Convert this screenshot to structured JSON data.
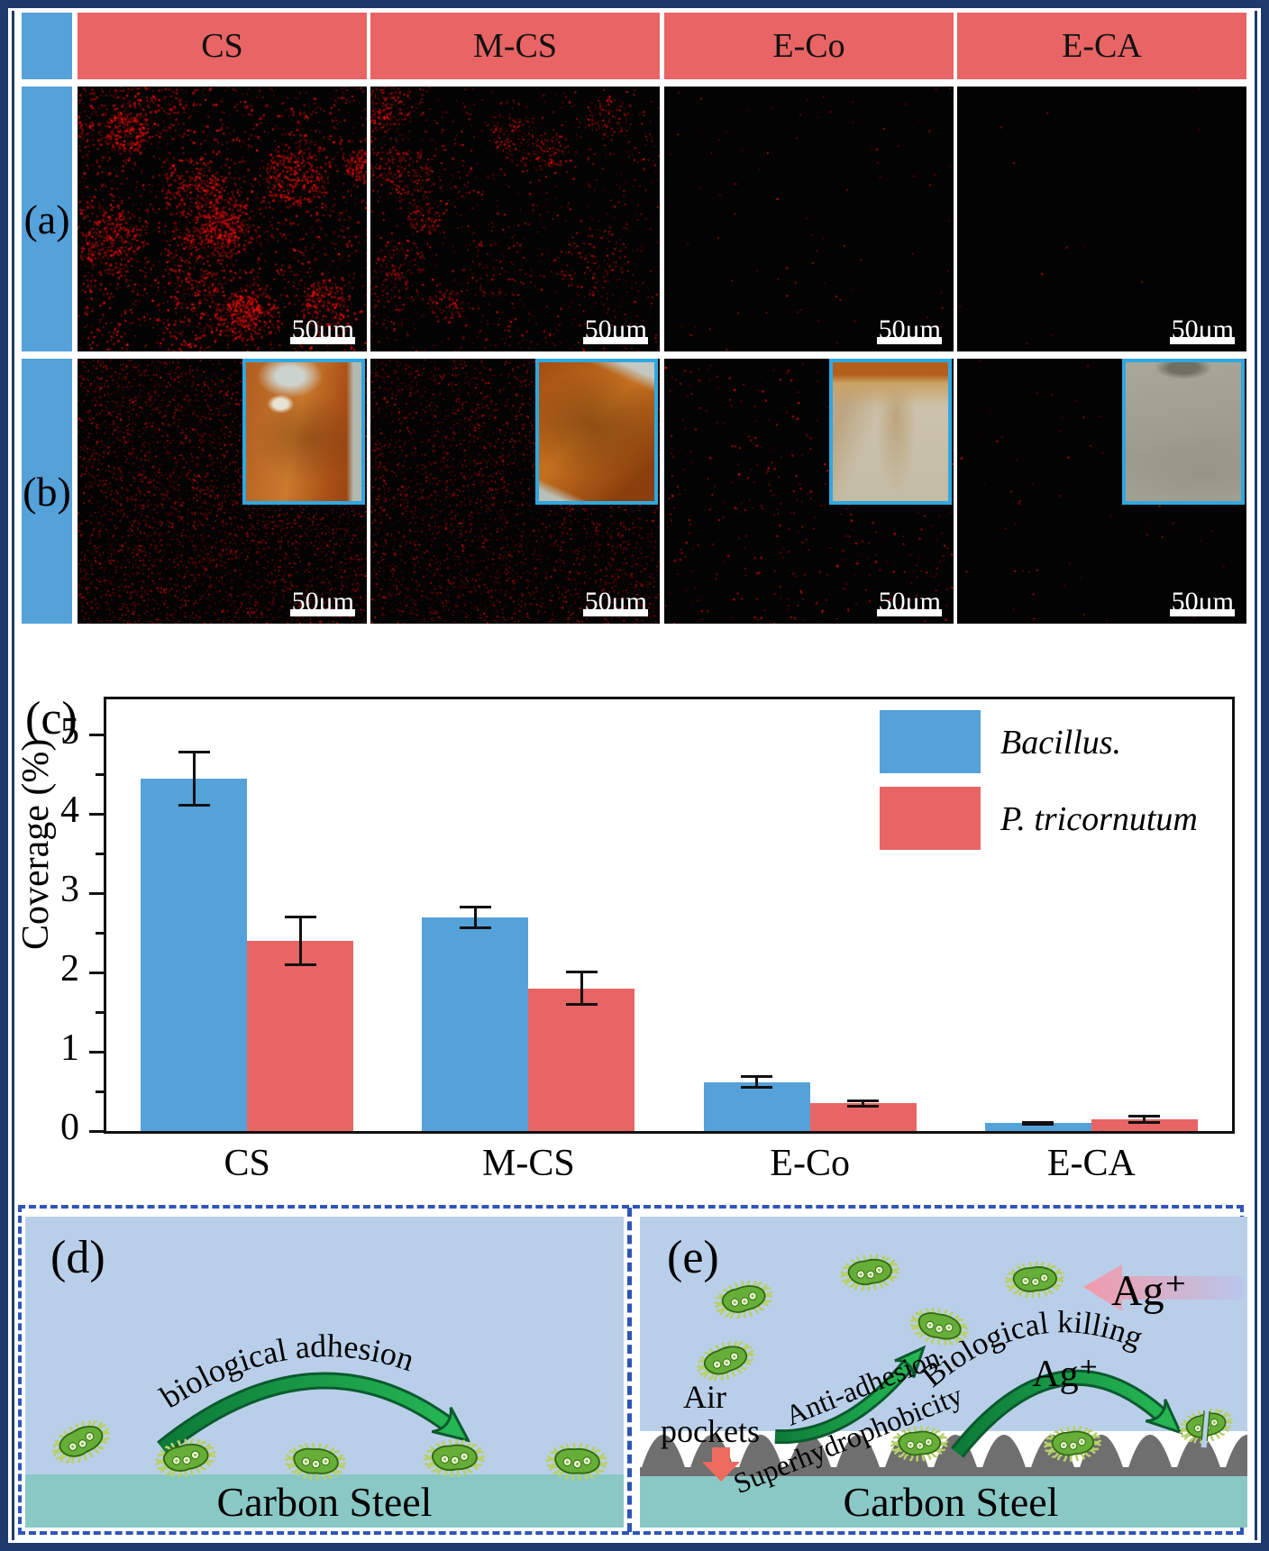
{
  "figure": {
    "columns": [
      "CS",
      "M-CS",
      "E-Co",
      "E-CA"
    ],
    "row_labels": {
      "a": "(a)",
      "b": "(b)"
    },
    "scale_bar_label": "50μm",
    "colors": {
      "accent_blue": "#55a1da",
      "accent_red": "#e96464",
      "frame_navy": "#1e3a6c",
      "dashed_blue": "#2e55b8",
      "panel_light_blue": "#b9cfe9",
      "steel_teal": "#8ac8c6",
      "dome_gray": "#6f6f6f",
      "inset_border_cyan": "#2fa8e1",
      "fluorescence_red": "#cc1414"
    }
  },
  "micrographs": {
    "row_a": [
      {
        "column": "CS",
        "style": "clustered",
        "count": 5200,
        "min": 1.0,
        "max": 2.6,
        "seed": 11,
        "inset": null
      },
      {
        "column": "M-CS",
        "style": "clustered",
        "count": 2600,
        "min": 0.8,
        "max": 2.2,
        "seed": 22,
        "inset": null
      },
      {
        "column": "E-Co",
        "style": "sparse",
        "count": 90,
        "min": 1.0,
        "max": 2.0,
        "seed": 33,
        "inset": null
      },
      {
        "column": "E-CA",
        "style": "sparse",
        "count": 14,
        "min": 1.0,
        "max": 2.0,
        "seed": 44,
        "inset": null
      }
    ],
    "row_b": [
      {
        "column": "CS",
        "style": "uniform",
        "count": 5200,
        "min": 0.7,
        "max": 1.8,
        "seed": 55,
        "inset": "rusted-steel"
      },
      {
        "column": "M-CS",
        "style": "uniform",
        "count": 4200,
        "min": 0.7,
        "max": 1.8,
        "seed": 66,
        "inset": "rusted-steel-2"
      },
      {
        "column": "E-Co",
        "style": "sparse",
        "count": 430,
        "min": 1.2,
        "max": 2.4,
        "seed": 77,
        "inset": "partially-corroded-steel"
      },
      {
        "column": "E-CA",
        "style": "sparse",
        "count": 80,
        "min": 1.0,
        "max": 2.0,
        "seed": 88,
        "inset": "clean-steel"
      }
    ]
  },
  "chart_data": {
    "type": "bar",
    "panel_label": "(c)",
    "categories": [
      "CS",
      "M-CS",
      "E-Co",
      "E-CA"
    ],
    "series": [
      {
        "name": "Bacillus.",
        "color": "#55a1da",
        "values": [
          4.45,
          2.7,
          0.62,
          0.1
        ],
        "errors": [
          0.35,
          0.15,
          0.09,
          0.03
        ]
      },
      {
        "name": "P. tricornutum",
        "color": "#e96464",
        "values": [
          2.4,
          1.8,
          0.35,
          0.15
        ],
        "errors": [
          0.32,
          0.22,
          0.05,
          0.06
        ]
      }
    ],
    "xlabel": "",
    "ylabel": "Coverage (%)",
    "ylim": [
      0,
      5.45
    ],
    "yticks": [
      0,
      1,
      2,
      3,
      4,
      5
    ],
    "minor_tick_step": 0.5,
    "legend_position": "top-right",
    "grid": false
  },
  "panel_d": {
    "label": "(d)",
    "arrow_text": "biological adhesion",
    "substrate_label": "Carbon Steel",
    "bacteria_count": 5
  },
  "panel_e": {
    "label": "(e)",
    "air_pockets_line1": "Air",
    "air_pockets_line2": "pockets",
    "anti_adhesion_text": "Anti-adhesion",
    "superhydrophobic_text": "Superhydrophobicity",
    "killing_arc_text": "Biological  killing",
    "silver_ion_arc": "Ag⁺",
    "silver_ion_arrow": "Ag⁺",
    "substrate_label": "Carbon Steel",
    "floating_bacteria_count": 5,
    "surface_bacteria_count": 3
  }
}
